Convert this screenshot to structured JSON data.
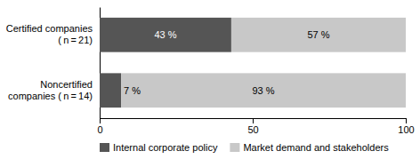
{
  "chart_data": {
    "type": "bar",
    "orientation": "horizontal",
    "stacked": true,
    "data_labels": true,
    "categories": [
      "Certified companies\n( n = 21)",
      "Noncertified\ncompanies ( n = 14)"
    ],
    "series": [
      {
        "name": "Internal corporate policy",
        "color": "#555555",
        "values": [
          43,
          7
        ],
        "value_labels": [
          "43 %",
          "7 %"
        ]
      },
      {
        "name": "Market demand and stakeholders",
        "color": "#c8c8c8",
        "values": [
          57,
          93
        ],
        "value_labels": [
          "57 %",
          "93 %"
        ]
      }
    ],
    "xlim": [
      0,
      100
    ],
    "xticks": [
      0,
      50,
      100
    ],
    "grid": false,
    "legend": "bottom"
  }
}
